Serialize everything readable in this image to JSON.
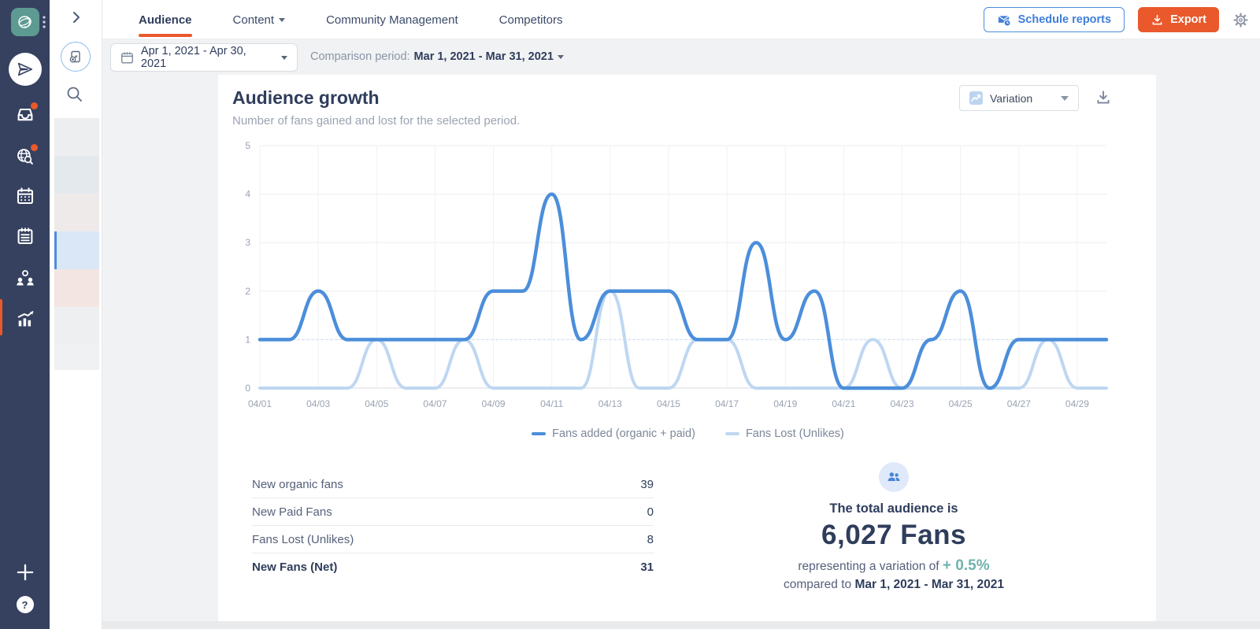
{
  "header": {
    "tabs": [
      {
        "label": "Audience",
        "active": true
      },
      {
        "label": "Content",
        "active": false,
        "caret": true
      },
      {
        "label": "Community Management",
        "active": false
      },
      {
        "label": "Competitors",
        "active": false
      }
    ],
    "schedule_button": "Schedule reports",
    "export_button": "Export"
  },
  "filters": {
    "date_range": "Apr 1, 2021 - Apr 30, 2021",
    "comparison_label": "Comparison period:",
    "comparison_value": "Mar 1, 2021 - Mar 31, 2021"
  },
  "sidebar": {
    "icons": [
      "logo-avatar",
      "kebab-menu",
      "publish-paper-plane",
      "inbox",
      "social-listening",
      "calendar",
      "notes",
      "audience",
      "reports",
      "add",
      "help"
    ]
  },
  "panel_icons": [
    "expand-chevron",
    "add-report",
    "search"
  ],
  "card": {
    "title": "Audience growth",
    "subtitle": "Number of fans gained and lost for the selected period.",
    "variation_label": "Variation"
  },
  "chart_data": {
    "type": "line",
    "title": "Audience growth",
    "x": [
      "04/01",
      "04/02",
      "04/03",
      "04/04",
      "04/05",
      "04/06",
      "04/07",
      "04/08",
      "04/09",
      "04/10",
      "04/11",
      "04/12",
      "04/13",
      "04/14",
      "04/15",
      "04/16",
      "04/17",
      "04/18",
      "04/19",
      "04/20",
      "04/21",
      "04/22",
      "04/23",
      "04/24",
      "04/25",
      "04/26",
      "04/27",
      "04/28",
      "04/29",
      "04/30"
    ],
    "x_tick_every": 2,
    "ylim": [
      0,
      5
    ],
    "y_ticks": [
      0,
      1,
      2,
      3,
      4,
      5
    ],
    "grid": true,
    "reference_line_y": 1,
    "legend_position": "bottom",
    "series": [
      {
        "name": "Fans added (organic + paid)",
        "color": "#4b8edb",
        "width": 4.5,
        "values": [
          1,
          1,
          2,
          1,
          1,
          1,
          1,
          1,
          2,
          2,
          4,
          1,
          2,
          2,
          2,
          1,
          1,
          3,
          1,
          2,
          0,
          0,
          0,
          1,
          2,
          0,
          1,
          1,
          1,
          1
        ]
      },
      {
        "name": "Fans Lost (Unlikes)",
        "color": "#bed7f2",
        "width": 4,
        "values": [
          0,
          0,
          0,
          0,
          1,
          0,
          0,
          1,
          0,
          0,
          0,
          0,
          2,
          0,
          0,
          1,
          1,
          0,
          0,
          0,
          0,
          1,
          0,
          0,
          0,
          0,
          0,
          1,
          0,
          0
        ]
      }
    ]
  },
  "summary_table": {
    "rows": [
      {
        "label": "New organic fans",
        "value": "39"
      },
      {
        "label": "New Paid Fans",
        "value": "0"
      },
      {
        "label": "Fans Lost (Unlikes)",
        "value": "8"
      },
      {
        "label": "New Fans (Net)",
        "value": "31",
        "bold": true
      }
    ]
  },
  "total_audience": {
    "heading": "The total audience is",
    "value": "6,027 Fans",
    "variation_prefix": "representing a variation of",
    "variation_value": "+ 0.5%",
    "compared_prefix": "compared to",
    "compared_value": "Mar 1, 2021 - Mar 31, 2021"
  },
  "colors": {
    "accent_orange": "#e9592b",
    "accent_blue": "#3f7fd9",
    "sidebar_navy": "#364160",
    "series_added": "#4b8edb",
    "series_lost": "#bed7f2",
    "variation_teal": "#6fb3ae"
  }
}
